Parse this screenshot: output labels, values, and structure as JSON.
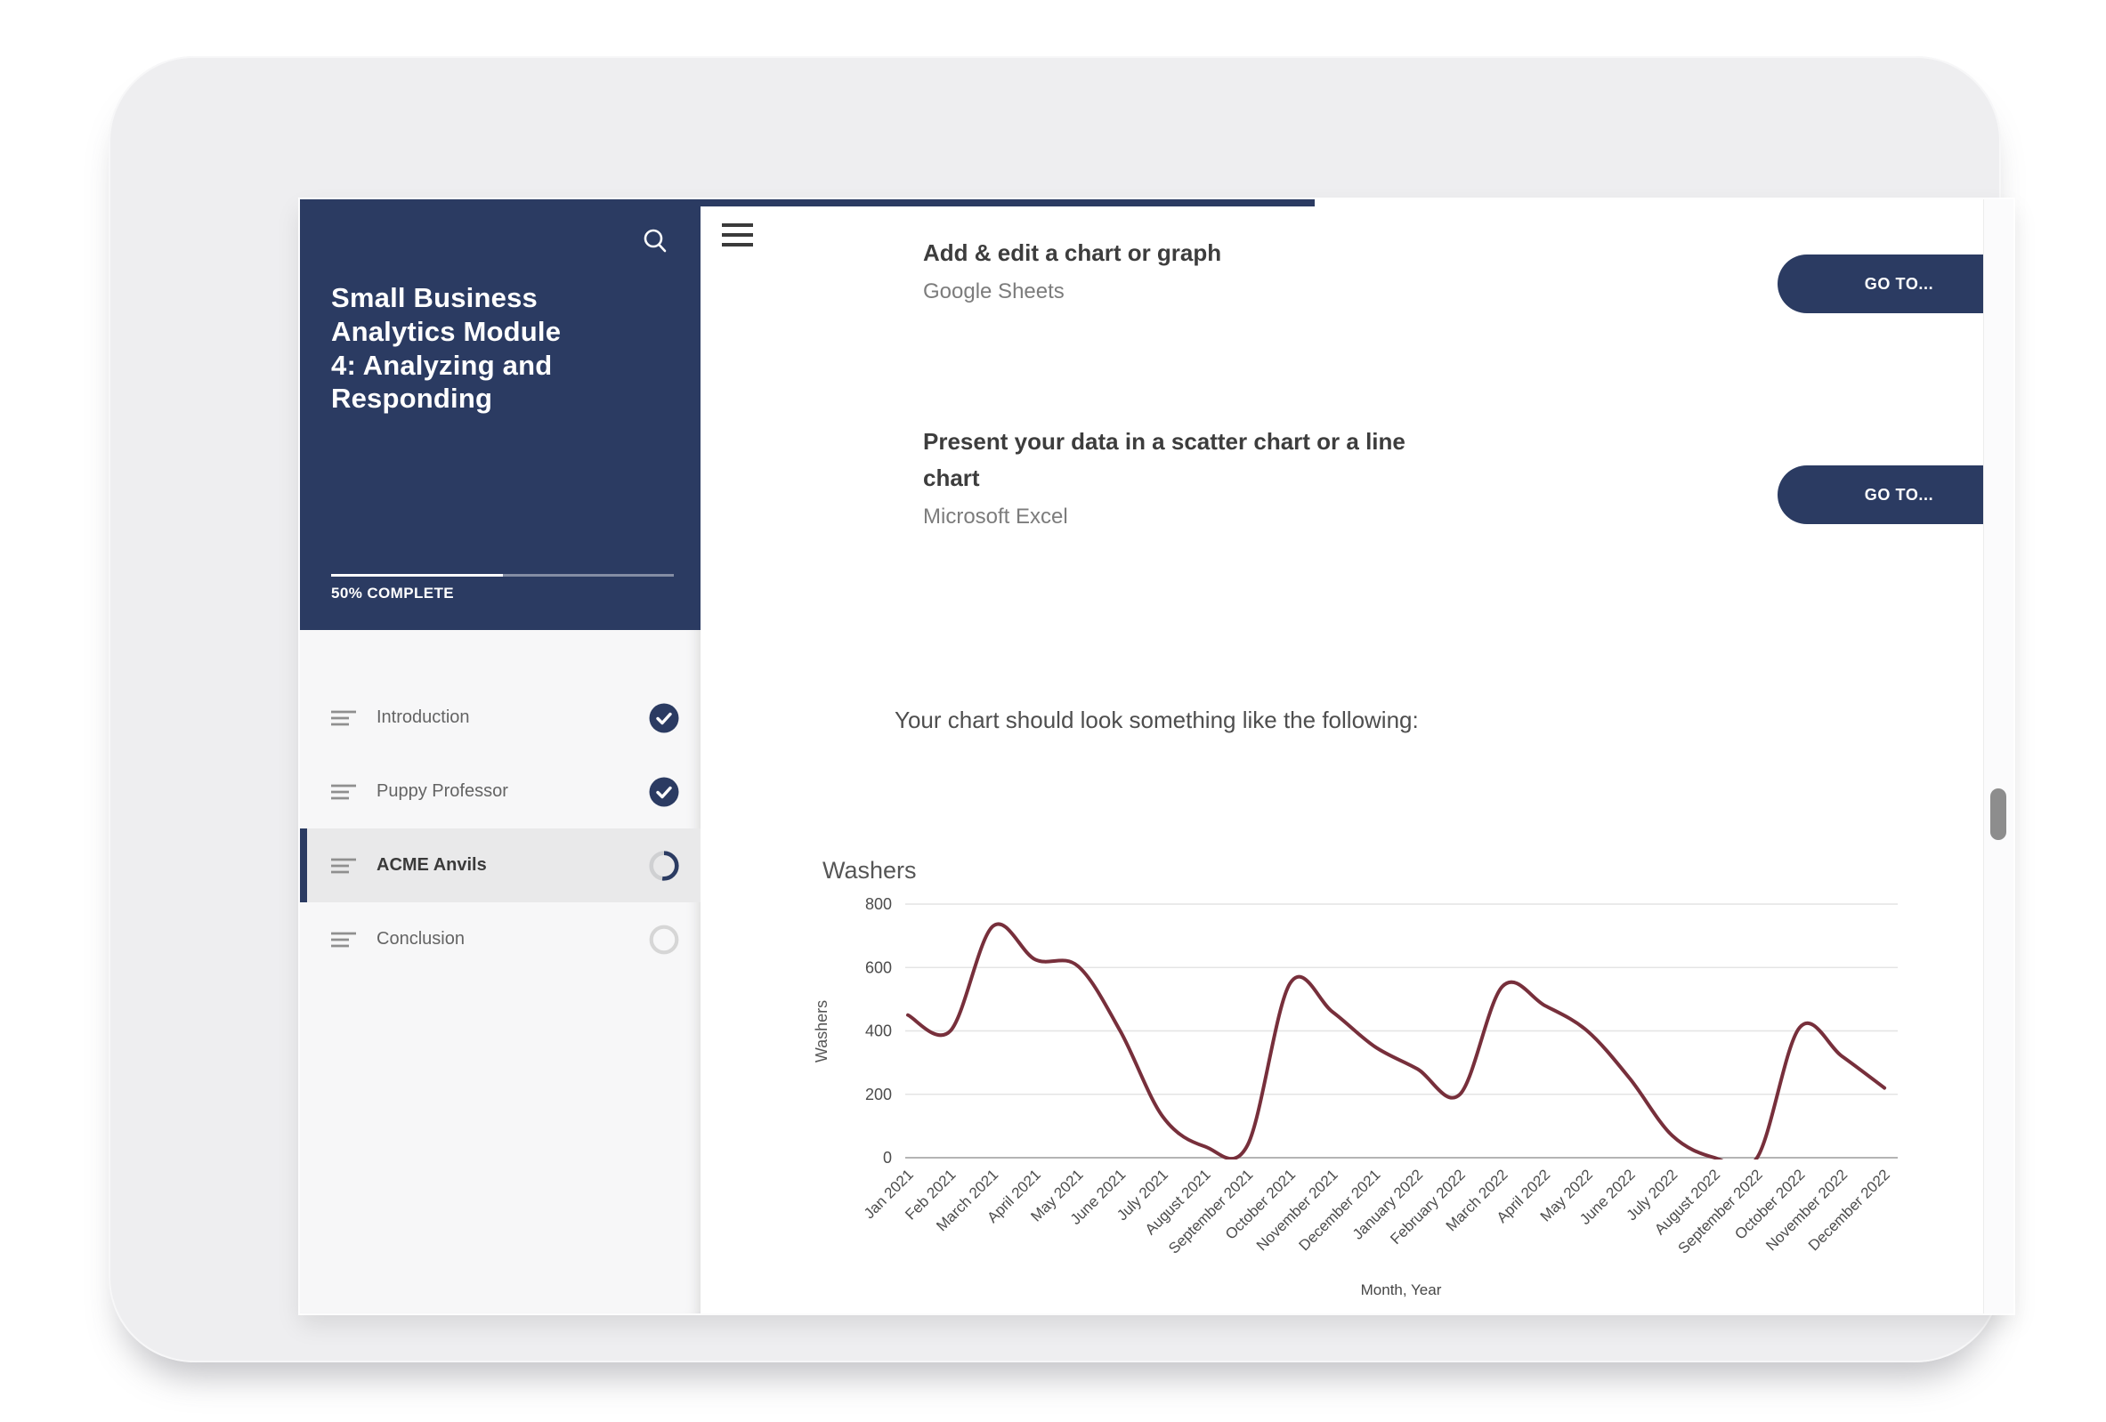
{
  "colors": {
    "accent": "#2b3b62",
    "line": "#772f3b",
    "grid": "#e4e4e4",
    "zero_axis": "#9b9b9b",
    "tick_text": "#4c4c4c"
  },
  "sidebar": {
    "title": "Small Business Analytics Module 4: Analyzing and Responding",
    "progress_percent": 50,
    "progress_label": "50% COMPLETE",
    "search_icon": "magnifier",
    "items": [
      {
        "label": "Introduction",
        "status": "complete",
        "active": false
      },
      {
        "label": "Puppy Professor",
        "status": "complete",
        "active": false
      },
      {
        "label": "ACME Anvils",
        "status": "in-progress",
        "active": true
      },
      {
        "label": "Conclusion",
        "status": "not-started",
        "active": false
      }
    ]
  },
  "content": {
    "menu_icon": "hamburger",
    "blocks": [
      {
        "title": "Add & edit a chart or graph",
        "subtitle": "Google Sheets",
        "button_label": "GO TO..."
      },
      {
        "title": "Present your data in a scatter chart or a line chart",
        "subtitle": "Microsoft Excel",
        "button_label": "GO TO..."
      }
    ],
    "note": "Your chart should look something like the following:"
  },
  "chart_data": {
    "type": "line",
    "title": "Washers",
    "xlabel": "Month, Year",
    "ylabel": "Washers",
    "ylim": [
      0,
      800
    ],
    "yticks": [
      0,
      200,
      400,
      600,
      800
    ],
    "grid": true,
    "legend": "none",
    "categories": [
      "Jan 2021",
      "Feb 2021",
      "March 2021",
      "April 2021",
      "May 2021",
      "June 2021",
      "July 2021",
      "August 2021",
      "September 2021",
      "October 2021",
      "November 2021",
      "December 2021",
      "January 2022",
      "February 2022",
      "March 2022",
      "April 2022",
      "May 2022",
      "June 2022",
      "July 2022",
      "August 2022",
      "September 2022",
      "October 2022",
      "November 2022",
      "December 2022"
    ],
    "series": [
      {
        "name": "Washers",
        "color": "#772f3b",
        "values": [
          450,
          400,
          730,
          625,
          605,
          400,
          130,
          35,
          40,
          550,
          460,
          350,
          280,
          200,
          540,
          480,
          400,
          250,
          70,
          0,
          0,
          410,
          320,
          220
        ]
      }
    ]
  }
}
